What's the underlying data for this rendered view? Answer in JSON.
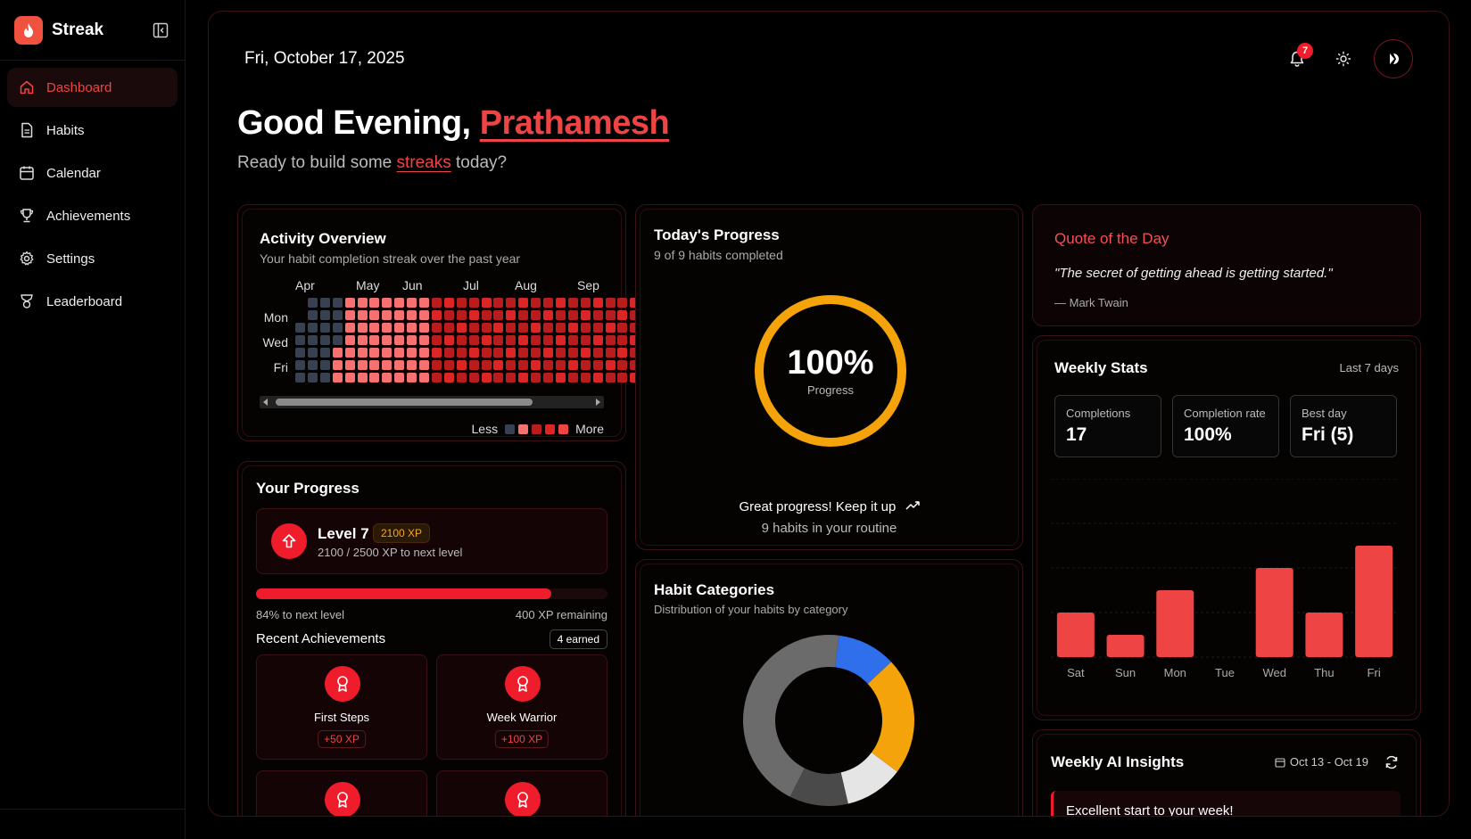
{
  "app": {
    "name": "Streak"
  },
  "sidebar": {
    "items": [
      {
        "label": "Dashboard",
        "icon": "home-icon",
        "active": true
      },
      {
        "label": "Habits",
        "icon": "document-icon",
        "active": false
      },
      {
        "label": "Calendar",
        "icon": "calendar-icon",
        "active": false
      },
      {
        "label": "Achievements",
        "icon": "trophy-icon",
        "active": false
      },
      {
        "label": "Settings",
        "icon": "gear-icon",
        "active": false
      },
      {
        "label": "Leaderboard",
        "icon": "medal-icon",
        "active": false
      }
    ]
  },
  "header": {
    "date": "Fri, October 17, 2025",
    "notification_count": "7",
    "greeting_prefix": "Good Evening, ",
    "user_name": "Prathamesh",
    "subtitle_pre": "Ready to build some ",
    "subtitle_highlight": "streaks",
    "subtitle_post": " today?"
  },
  "activity": {
    "title": "Activity Overview",
    "subtitle": "Your habit completion streak over the past year",
    "months": [
      "Apr",
      "May",
      "Jun",
      "Jul",
      "Aug",
      "Sep"
    ],
    "days": [
      "Mon",
      "Wed",
      "Fri"
    ],
    "legend_less": "Less",
    "legend_more": "More",
    "colors": {
      "empty": "#374151",
      "light": "#f87171",
      "mid": "#dc2626",
      "dark": "#b91c1c",
      "max": "#ef4444"
    }
  },
  "your_progress": {
    "title": "Your Progress",
    "level": "Level 7",
    "xp": "2100 XP",
    "xp_sub": "2100 / 2500 XP to next level",
    "progress_fraction": 0.84,
    "progress_left": "84% to next level",
    "progress_right": "400 XP remaining",
    "recent_title": "Recent Achievements",
    "earned": "4 earned",
    "achievements": [
      {
        "name": "First Steps",
        "xp": "+50 XP"
      },
      {
        "name": "Week Warrior",
        "xp": "+100 XP"
      }
    ]
  },
  "today": {
    "title": "Today's Progress",
    "subtitle": "9 of 9 habits completed",
    "percent": "100%",
    "percent_label": "Progress",
    "fraction": 1.0,
    "message": "Great progress! Keep it up",
    "routine": "9 habits in your routine",
    "ring_color": "#f5a30b"
  },
  "categories": {
    "title": "Habit Categories",
    "subtitle": "Distribution of your habits by category",
    "slices": [
      {
        "value": 1,
        "color": "#2f6fec"
      },
      {
        "value": 2,
        "color": "#f5a30b"
      },
      {
        "value": 1,
        "color": "#e5e5e5"
      },
      {
        "value": 1,
        "color": "#4a4a4a"
      },
      {
        "value": 4,
        "color": "#6b6b6b"
      }
    ]
  },
  "quote": {
    "title": "Quote of the Day",
    "text": "\"The secret of getting ahead is getting started.\"",
    "author": "— Mark Twain"
  },
  "weekly_stats": {
    "title": "Weekly Stats",
    "range": "Last 7 days",
    "stats": [
      {
        "label": "Completions",
        "value": "17"
      },
      {
        "label": "Completion rate",
        "value": "100%"
      },
      {
        "label": "Best day",
        "value": "Fri (5)"
      }
    ]
  },
  "chart_data": {
    "type": "bar",
    "categories": [
      "Sat",
      "Sun",
      "Mon",
      "Tue",
      "Wed",
      "Thu",
      "Fri"
    ],
    "values": [
      2,
      1,
      3,
      0,
      4,
      2,
      5
    ],
    "ylim": [
      0,
      8
    ],
    "grid": true,
    "color": "#ef4444"
  },
  "ai_insights": {
    "title": "Weekly AI Insights",
    "range": "Oct 13 - Oct 19",
    "note": "Excellent start to your week!"
  }
}
